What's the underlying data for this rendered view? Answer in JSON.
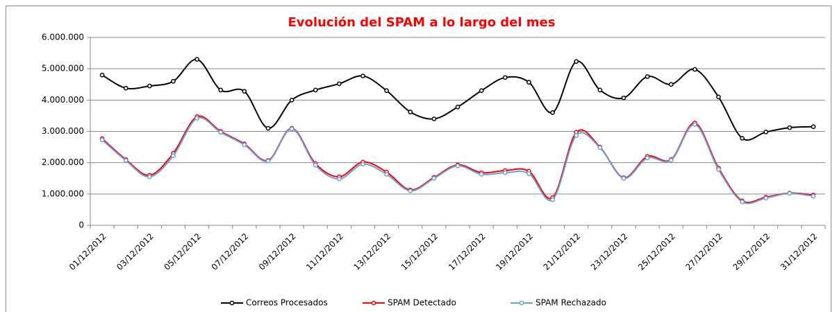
{
  "chart_data": {
    "type": "line",
    "title": "Evolución del SPAM a lo largo del mes",
    "categories": [
      "01/12/2012",
      null,
      "03/12/2012",
      null,
      "05/12/2012",
      null,
      "07/12/2012",
      null,
      "09/12/2012",
      null,
      "11/12/2012",
      null,
      "13/12/2012",
      null,
      "15/12/2012",
      null,
      "17/12/2012",
      null,
      "19/12/2012",
      null,
      "21/12/2012",
      null,
      "23/12/2012",
      null,
      "25/12/2012",
      null,
      "27/12/2012",
      null,
      "29/12/2012",
      null,
      "31/12/2012"
    ],
    "series": [
      {
        "name": "Correos Procesados",
        "color": "#000000",
        "values": [
          4800000,
          4380000,
          4450000,
          4600000,
          5300000,
          4320000,
          4280000,
          3100000,
          4000000,
          4320000,
          4520000,
          4770000,
          4300000,
          3620000,
          3400000,
          3780000,
          4300000,
          4720000,
          4570000,
          3600000,
          5230000,
          4320000,
          4070000,
          4750000,
          4500000,
          4980000,
          4100000,
          2780000,
          2980000,
          3120000,
          3150000
        ]
      },
      {
        "name": "SPAM Detectado",
        "color": "#ff0000",
        "values": [
          2770000,
          2100000,
          1600000,
          2300000,
          3470000,
          3000000,
          2600000,
          2070000,
          3100000,
          1970000,
          1550000,
          2020000,
          1700000,
          1130000,
          1530000,
          1930000,
          1680000,
          1750000,
          1730000,
          880000,
          2970000,
          2500000,
          1520000,
          2200000,
          2100000,
          3270000,
          1830000,
          780000,
          900000,
          1030000,
          970000
        ]
      },
      {
        "name": "SPAM Rechazado",
        "color": "#6a9fd8",
        "values": [
          2730000,
          2070000,
          1550000,
          2220000,
          3420000,
          2970000,
          2570000,
          2050000,
          3080000,
          1920000,
          1480000,
          1950000,
          1630000,
          1100000,
          1500000,
          1900000,
          1630000,
          1680000,
          1650000,
          820000,
          2870000,
          2480000,
          1500000,
          2150000,
          2080000,
          3220000,
          1780000,
          750000,
          870000,
          1020000,
          930000
        ]
      }
    ],
    "ylim": [
      0,
      6000000
    ],
    "yticks": [
      0,
      {
        "value": 1000000,
        "label": "1.000.000"
      },
      {
        "value": 2000000,
        "label": "2.000.000"
      },
      {
        "value": 3000000,
        "label": "3.000.000"
      },
      {
        "value": 4000000,
        "label": "4.000.000"
      },
      {
        "value": 5000000,
        "label": "5.000.000"
      },
      {
        "value": 6000000,
        "label": "6.000.000"
      }
    ],
    "grid": true,
    "smooth": true,
    "legend": "bottom"
  }
}
